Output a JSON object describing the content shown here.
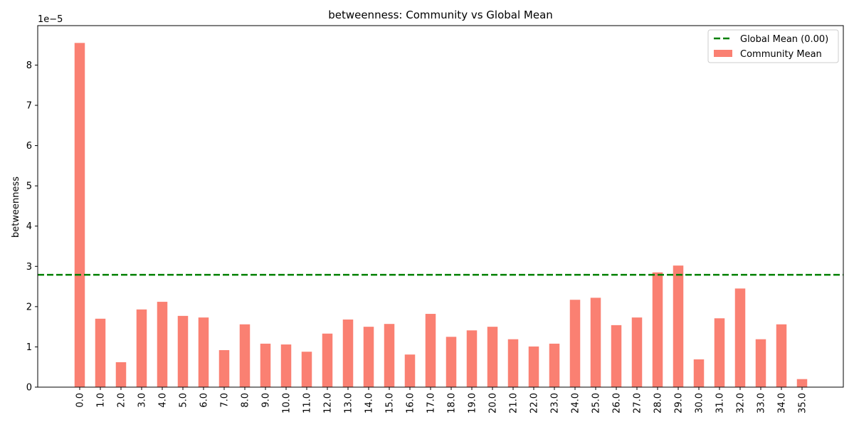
{
  "chart_data": {
    "type": "bar",
    "title": "betweenness: Community vs Global Mean",
    "xlabel": "",
    "ylabel": "betweenness",
    "y_scale_label": "1e−5",
    "y_multiplier": 1e-05,
    "categories": [
      "0.0",
      "1.0",
      "2.0",
      "3.0",
      "4.0",
      "5.0",
      "6.0",
      "7.0",
      "8.0",
      "9.0",
      "10.0",
      "11.0",
      "12.0",
      "13.0",
      "14.0",
      "15.0",
      "16.0",
      "17.0",
      "18.0",
      "19.0",
      "20.0",
      "21.0",
      "22.0",
      "23.0",
      "24.0",
      "25.0",
      "26.0",
      "27.0",
      "28.0",
      "29.0",
      "30.0",
      "31.0",
      "32.0",
      "33.0",
      "34.0",
      "35.0"
    ],
    "series": [
      {
        "name": "Community Mean",
        "color": "#fa8072",
        "values": [
          8.55,
          1.7,
          0.62,
          1.93,
          2.12,
          1.77,
          1.73,
          0.92,
          1.56,
          1.08,
          1.06,
          0.88,
          1.33,
          1.68,
          1.5,
          1.57,
          0.81,
          1.82,
          1.25,
          1.41,
          1.5,
          1.19,
          1.01,
          1.08,
          2.17,
          2.22,
          1.54,
          1.73,
          2.85,
          3.02,
          0.69,
          1.71,
          2.45,
          1.19,
          1.56,
          0.2
        ]
      }
    ],
    "reference_line": {
      "name": "Global Mean (0.00)",
      "value": 2.79,
      "color": "#008000",
      "style": "dashed"
    },
    "yticks": [
      "0",
      "1",
      "2",
      "3",
      "4",
      "5",
      "6",
      "7",
      "8"
    ],
    "ylim": [
      0,
      8.98
    ],
    "grid": false,
    "legend_position": "top-right"
  }
}
